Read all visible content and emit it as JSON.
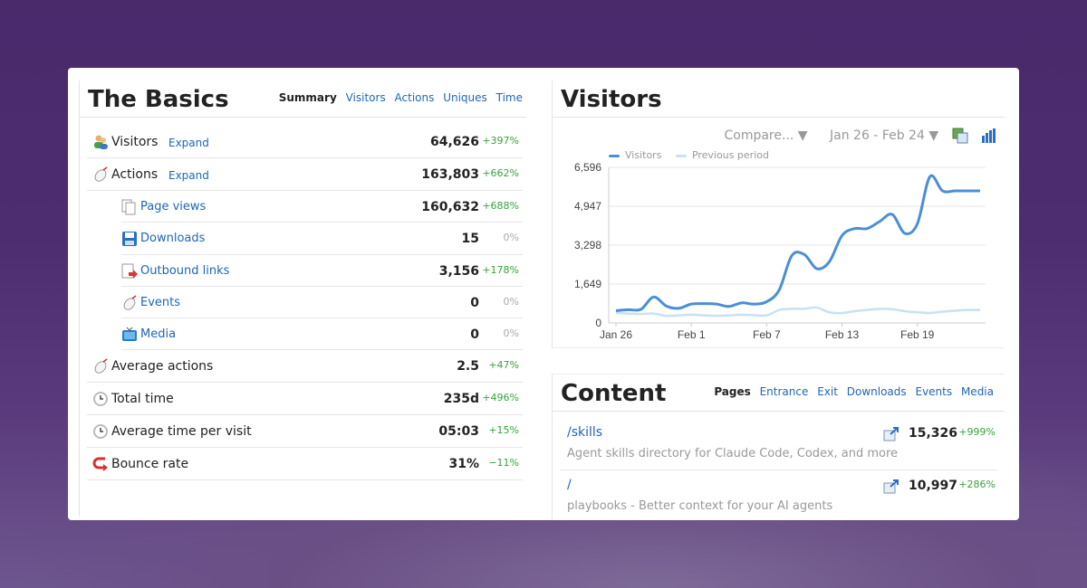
{
  "basics": {
    "title": "The Basics",
    "tabs": [
      "Summary",
      "Visitors",
      "Actions",
      "Uniques",
      "Time"
    ],
    "expand_label": "Expand",
    "rows": [
      {
        "label": "Visitors",
        "value": "64,626",
        "change": "+397%",
        "icon": "visitors-icon",
        "expand": true
      },
      {
        "label": "Actions",
        "value": "163,803",
        "change": "+662%",
        "icon": "actions-icon",
        "expand": true
      },
      {
        "label": "Page views",
        "value": "160,632",
        "change": "+688%",
        "icon": "page-views-icon",
        "sub": true
      },
      {
        "label": "Downloads",
        "value": "15",
        "change": "0%",
        "icon": "downloads-icon",
        "sub": true
      },
      {
        "label": "Outbound links",
        "value": "3,156",
        "change": "+178%",
        "icon": "outbound-links-icon",
        "sub": true
      },
      {
        "label": "Events",
        "value": "0",
        "change": "0%",
        "icon": "events-icon",
        "sub": true
      },
      {
        "label": "Media",
        "value": "0",
        "change": "0%",
        "icon": "media-icon",
        "sub": true
      },
      {
        "label": "Average actions",
        "value": "2.5",
        "change": "+47%",
        "icon": "average-actions-icon"
      },
      {
        "label": "Total time",
        "value": "235d",
        "change": "+496%",
        "icon": "clock-icon"
      },
      {
        "label": "Average time per visit",
        "value": "05:03",
        "change": "+15%",
        "icon": "clock-icon"
      },
      {
        "label": "Bounce rate",
        "value": "31%",
        "change": "−11%",
        "icon": "bounce-icon"
      }
    ]
  },
  "visitors": {
    "title": "Visitors",
    "compare_label": "Compare... ▼",
    "date_range": "Jan 26 - Feb 24 ▼",
    "legend": [
      "Visitors",
      "Previous period"
    ],
    "colors": {
      "visitors": "#4a8fd4",
      "previous": "#c8e1f5"
    }
  },
  "chart_data": {
    "type": "line",
    "x": [
      "Jan 26",
      "Jan 27",
      "Jan 28",
      "Jan 29",
      "Jan 30",
      "Jan 31",
      "Feb 1",
      "Feb 2",
      "Feb 3",
      "Feb 4",
      "Feb 5",
      "Feb 6",
      "Feb 7",
      "Feb 8",
      "Feb 9",
      "Feb 10",
      "Feb 11",
      "Feb 12",
      "Feb 13",
      "Feb 14",
      "Feb 15",
      "Feb 16",
      "Feb 17",
      "Feb 18",
      "Feb 19",
      "Feb 20",
      "Feb 21",
      "Feb 22",
      "Feb 23",
      "Feb 24"
    ],
    "xticks": [
      "Jan 26",
      "Feb 1",
      "Feb 7",
      "Feb 13",
      "Feb 19"
    ],
    "yticks": [
      "0",
      "1,649",
      "3,298",
      "4,947",
      "6,596"
    ],
    "ylim": [
      0,
      6596
    ],
    "grid": true,
    "legend_position": "top-left",
    "series": [
      {
        "name": "Visitors",
        "values": [
          520,
          560,
          580,
          1100,
          720,
          620,
          800,
          820,
          800,
          700,
          850,
          800,
          900,
          1400,
          2850,
          2900,
          2300,
          2600,
          3700,
          4000,
          4000,
          4300,
          4600,
          3800,
          4200,
          6200,
          5600,
          5600,
          5600,
          5600
        ]
      },
      {
        "name": "Previous period",
        "values": [
          420,
          400,
          380,
          400,
          300,
          320,
          350,
          320,
          300,
          320,
          350,
          330,
          320,
          550,
          600,
          600,
          650,
          450,
          420,
          500,
          550,
          600,
          580,
          500,
          450,
          420,
          480,
          520,
          550,
          550
        ]
      }
    ]
  },
  "content": {
    "title": "Content",
    "tabs": [
      "Pages",
      "Entrance",
      "Exit",
      "Downloads",
      "Events",
      "Media"
    ],
    "rows": [
      {
        "path": "/skills",
        "desc": "Agent skills directory for Claude Code, Codex, and more",
        "value": "15,326",
        "change": "+999%"
      },
      {
        "path": "/",
        "desc": "playbooks - Better context for your AI agents",
        "value": "10,997",
        "change": "+286%"
      }
    ]
  }
}
